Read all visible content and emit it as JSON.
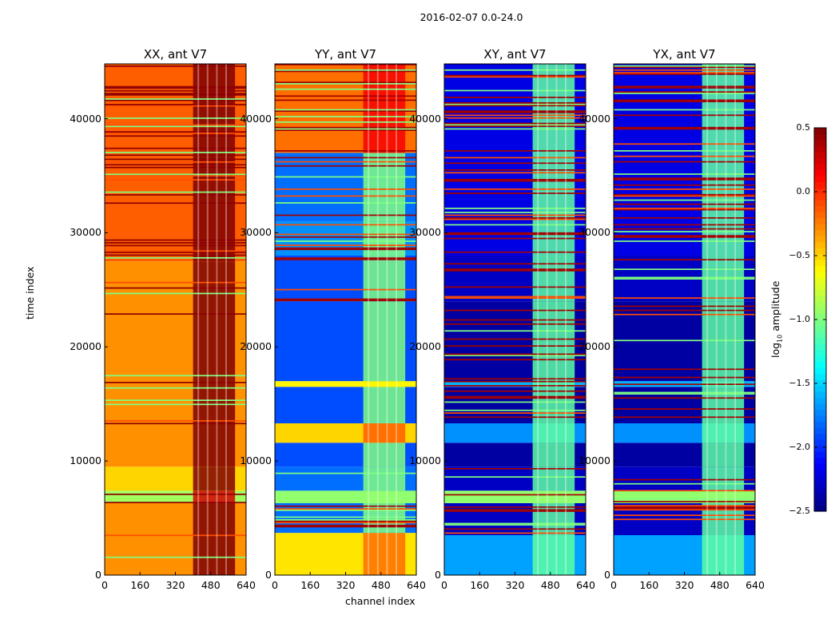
{
  "chart_data": {
    "type": "heatmap",
    "title": "2016-02-07 0.0-24.0",
    "xlabel": "channel index",
    "ylabel": "time index",
    "xlim": [
      0,
      640
    ],
    "ylim": [
      0,
      44800
    ],
    "xticks": [
      "0",
      "160",
      "320",
      "480",
      "640"
    ],
    "yticks": [
      "0",
      "10000",
      "20000",
      "30000",
      "40000"
    ],
    "colorbar": {
      "label": "log10 amplitude",
      "label_main": "log",
      "label_sub": "10",
      "label_rest": " amplitude",
      "range": [
        -2.5,
        0.5
      ],
      "ticks": [
        "0.5",
        "0.0",
        "−0.5",
        "−1.0",
        "−1.5",
        "−2.0",
        "−2.5"
      ],
      "colormap": "jet"
    },
    "rfi_channels": [
      400,
      590
    ],
    "panels": [
      {
        "title": "XX, ant V7",
        "rfi_value": 0.25,
        "stripe_value": 0.45,
        "bands": [
          [
            0,
            6300,
            -0.3
          ],
          [
            6300,
            7400,
            -0.9
          ],
          [
            7400,
            9500,
            -0.5
          ],
          [
            9500,
            27500,
            -0.3
          ],
          [
            27500,
            45000,
            -0.15
          ]
        ],
        "stripes": [
          [
            1500,
            9500,
            0.02
          ],
          [
            9500,
            27500,
            0.01
          ],
          [
            27500,
            45000,
            0.05
          ]
        ]
      },
      {
        "title": "YY, ant V7",
        "rfi_value": -1.0,
        "stripe_value": 0.4,
        "bands": [
          [
            0,
            3700,
            -0.55
          ],
          [
            3700,
            6300,
            -1.8
          ],
          [
            6300,
            7400,
            -0.95
          ],
          [
            7400,
            9500,
            -1.8
          ],
          [
            9500,
            11600,
            -1.9
          ],
          [
            11600,
            13300,
            -0.5
          ],
          [
            13300,
            16500,
            -1.9
          ],
          [
            16500,
            17000,
            -0.6
          ],
          [
            17000,
            24000,
            -1.9
          ],
          [
            24000,
            28000,
            -1.9
          ],
          [
            28000,
            31000,
            -1.7
          ],
          [
            31000,
            37000,
            -1.8
          ],
          [
            37000,
            45000,
            -0.2
          ]
        ],
        "stripes": [
          [
            3700,
            9500,
            0.04
          ],
          [
            24000,
            28000,
            0.04
          ],
          [
            28000,
            45000,
            0.035
          ]
        ]
      },
      {
        "title": "XY, ant V7",
        "rfi_value": -1.1,
        "stripe_value": 0.4,
        "bands": [
          [
            0,
            3500,
            -1.65
          ],
          [
            3500,
            6300,
            -2.3
          ],
          [
            6300,
            7400,
            -0.95
          ],
          [
            7400,
            9500,
            -2.3
          ],
          [
            9500,
            11600,
            -2.4
          ],
          [
            11600,
            13300,
            -1.7
          ],
          [
            13300,
            16500,
            -2.4
          ],
          [
            16500,
            17000,
            -1.6
          ],
          [
            17000,
            24000,
            -2.4
          ],
          [
            24000,
            28000,
            -2.3
          ],
          [
            28000,
            45000,
            -2.2
          ]
        ],
        "stripes": [
          [
            3500,
            9500,
            0.04
          ],
          [
            13300,
            28000,
            0.025
          ],
          [
            28000,
            45000,
            0.04
          ]
        ]
      },
      {
        "title": "YX, ant V7",
        "rfi_value": -1.1,
        "stripe_value": 0.4,
        "bands": [
          [
            0,
            3500,
            -1.65
          ],
          [
            3500,
            6300,
            -2.3
          ],
          [
            6300,
            7400,
            -0.95
          ],
          [
            7400,
            9500,
            -2.3
          ],
          [
            9500,
            11600,
            -2.4
          ],
          [
            11600,
            13300,
            -1.7
          ],
          [
            13300,
            16500,
            -2.4
          ],
          [
            16500,
            17000,
            -1.6
          ],
          [
            17000,
            24000,
            -2.4
          ],
          [
            24000,
            28000,
            -2.3
          ],
          [
            28000,
            45000,
            -2.2
          ]
        ],
        "stripes": [
          [
            3500,
            9500,
            0.04
          ],
          [
            13300,
            28000,
            0.025
          ],
          [
            28000,
            45000,
            0.04
          ]
        ]
      }
    ]
  }
}
